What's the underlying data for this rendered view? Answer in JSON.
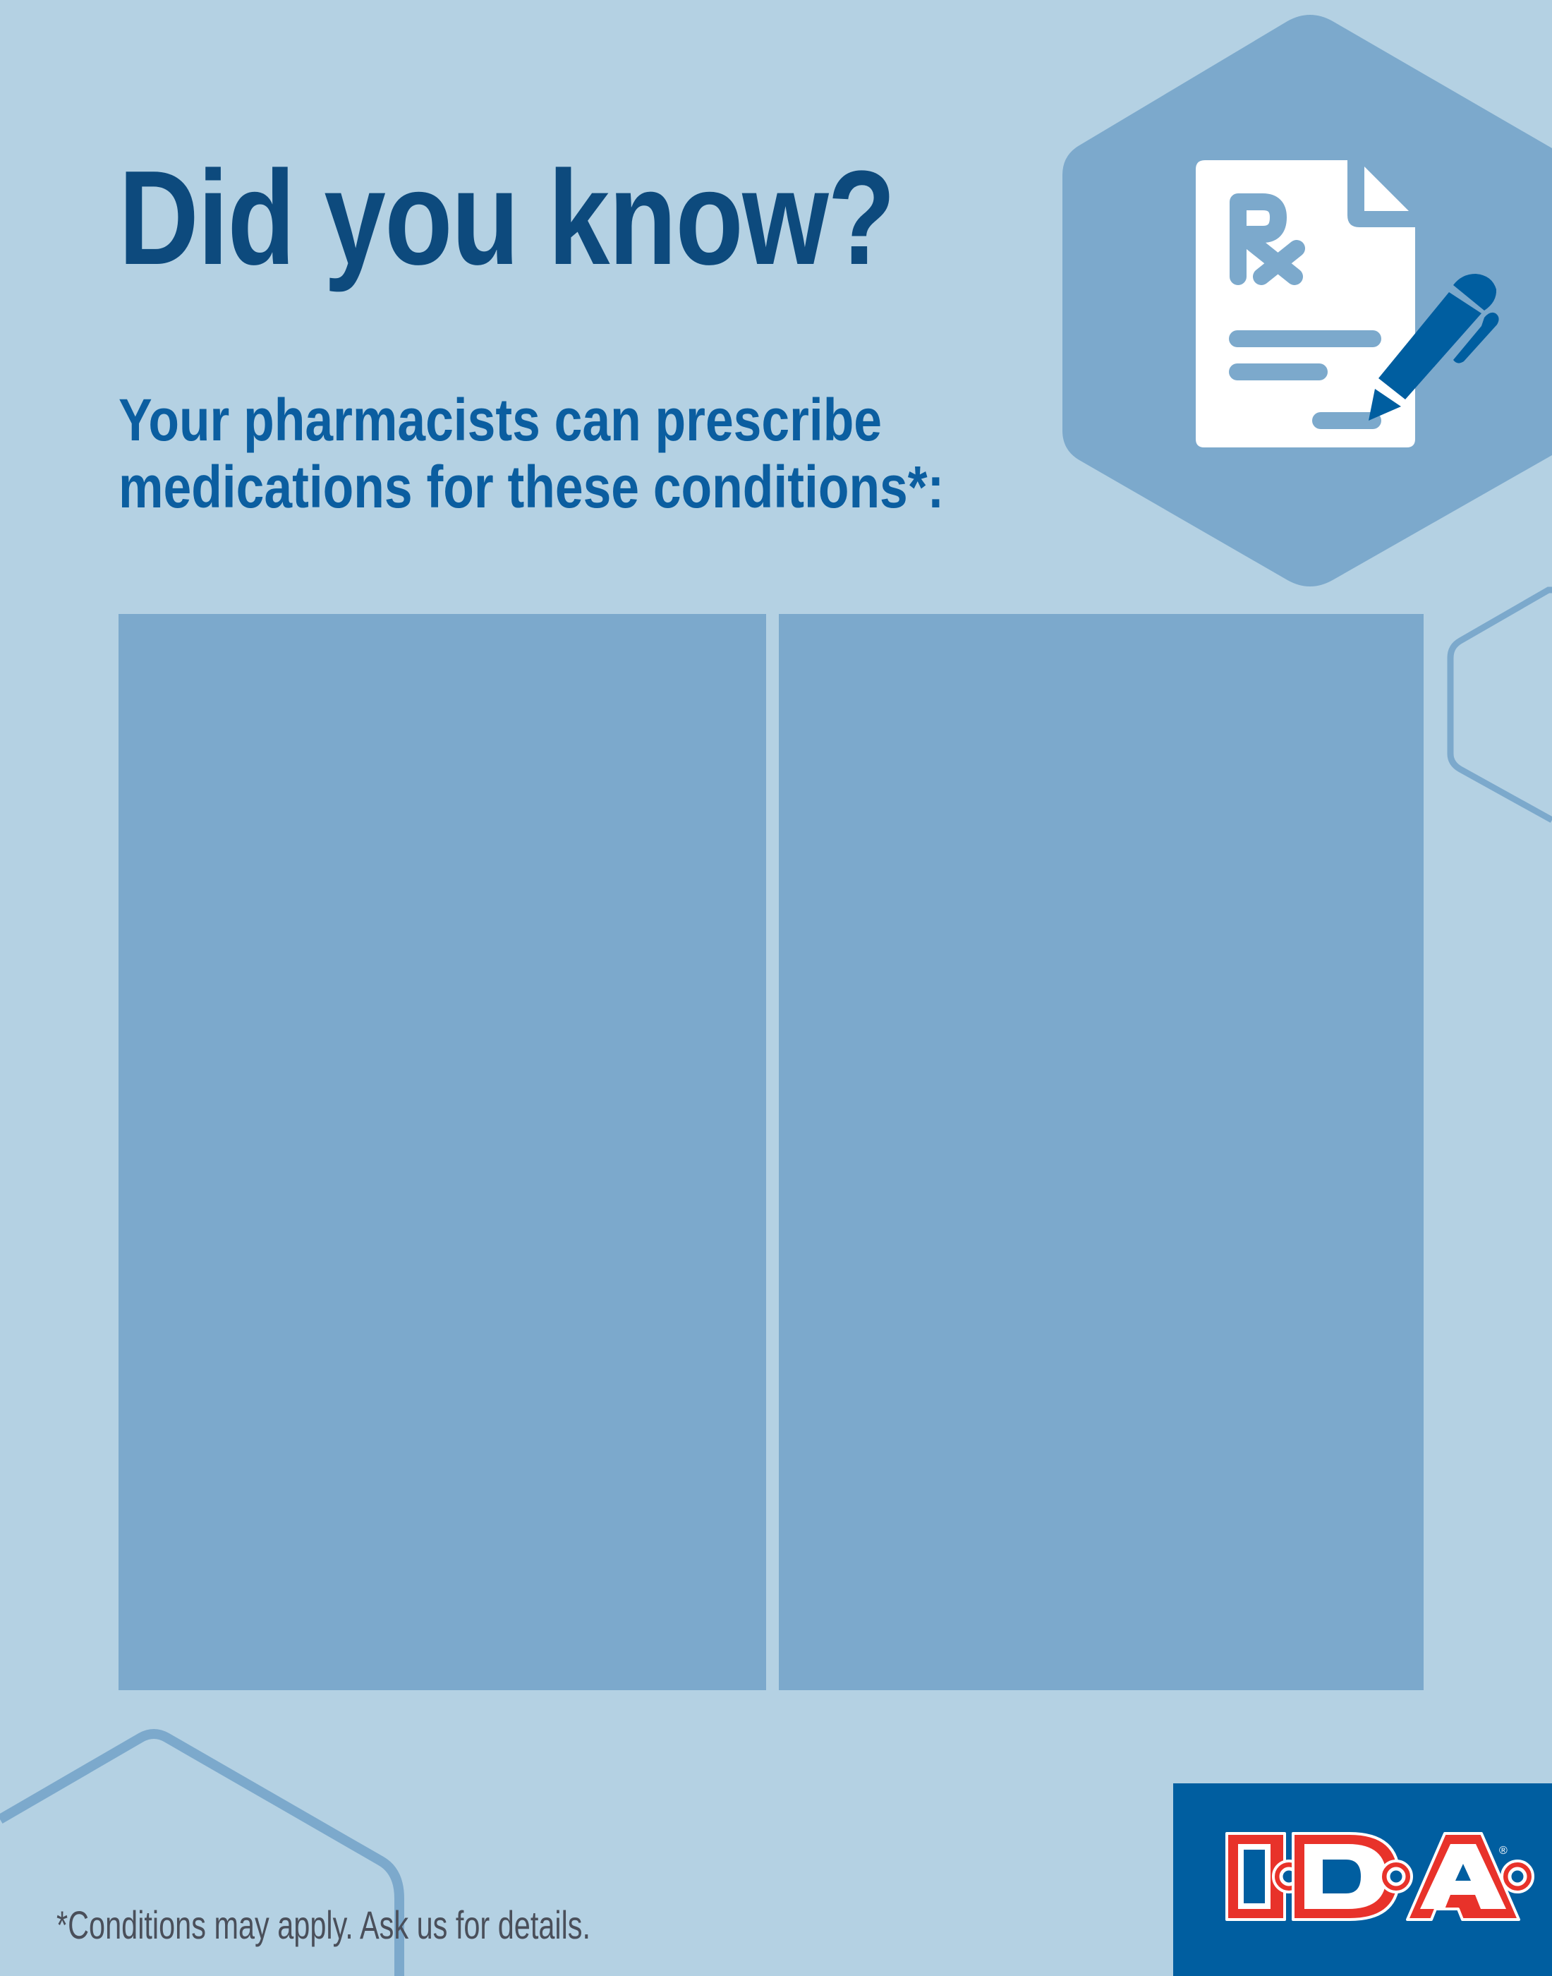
{
  "header": {
    "title": "Did you know?",
    "subtitle_line1": "Your pharmacists can prescribe",
    "subtitle_line2": "medications for these conditions*:"
  },
  "panels": [
    {
      "name": "left-panel",
      "content": ""
    },
    {
      "name": "right-panel",
      "content": ""
    }
  ],
  "footnote": "*Conditions may apply. Ask us for details.",
  "logo": {
    "text": "I·D·A",
    "registered": "®"
  },
  "icons": {
    "hero": "prescription-document-with-pen-icon"
  },
  "colors": {
    "background": "#b4d1e3",
    "panel": "#7ca9cc",
    "title": "#0d4a7d",
    "subtitle": "#0b5ea0",
    "brand_blue": "#005ea0",
    "brand_red": "#e8322a",
    "footnote": "#4a4f5a"
  }
}
